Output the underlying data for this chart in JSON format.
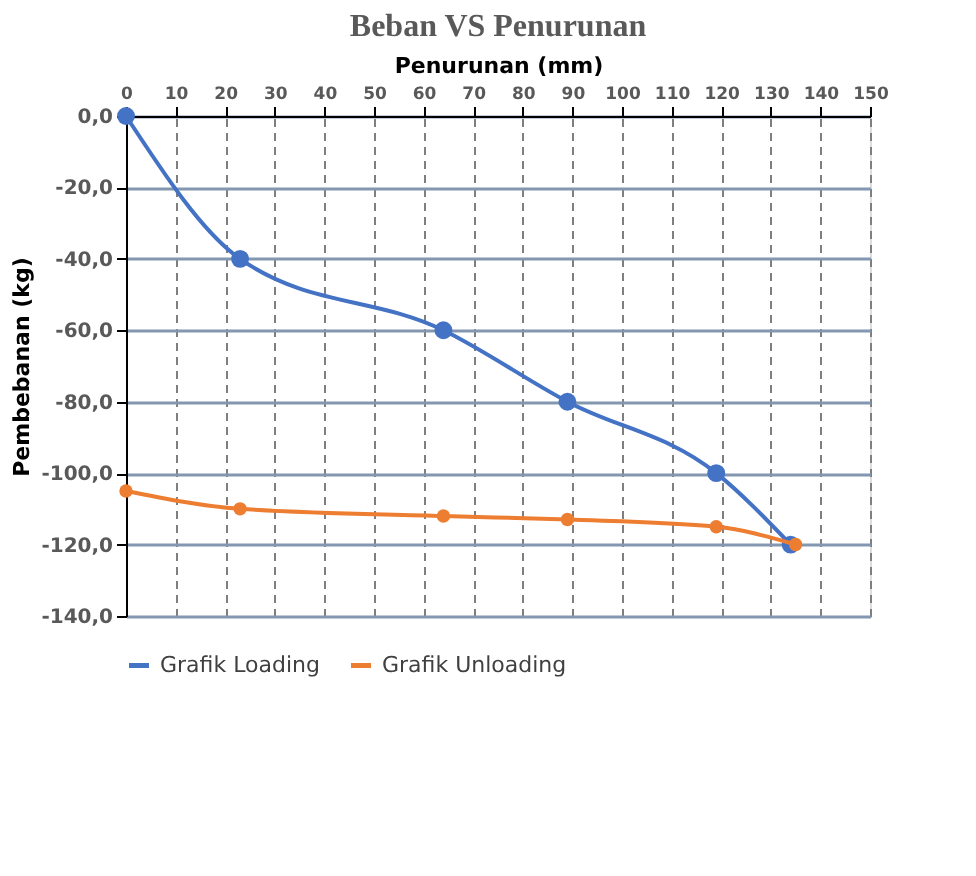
{
  "chart_data": {
    "type": "line",
    "title": "Beban VS Penurunan",
    "xlabel": "Penurunan (mm)",
    "ylabel": "Pembebanan (kg)",
    "series": [
      {
        "name": "Grafik Loading",
        "color": "#4472c4",
        "x": [
          0,
          23,
          64,
          89,
          119,
          134
        ],
        "values": [
          0,
          -40,
          -60,
          -80,
          -100,
          -120
        ]
      },
      {
        "name": "Grafik Unloading",
        "color": "#ed7d31",
        "x": [
          0,
          23,
          64,
          89,
          119,
          135
        ],
        "values": [
          -105,
          -110,
          -112,
          -113,
          -115,
          -120
        ]
      }
    ],
    "xlim": [
      0,
      150
    ],
    "xticks": [
      0,
      10,
      20,
      30,
      40,
      50,
      60,
      70,
      80,
      90,
      100,
      110,
      120,
      130,
      140,
      150
    ],
    "ylim": [
      -140,
      0
    ],
    "yticks": [
      {
        "value": 0,
        "label": "0,0"
      },
      {
        "value": -20,
        "label": "-20,0"
      },
      {
        "value": -40,
        "label": "-40,0"
      },
      {
        "value": -60,
        "label": "-60,0"
      },
      {
        "value": -80,
        "label": "-80,0"
      },
      {
        "value": -100,
        "label": "-100,0"
      },
      {
        "value": -120,
        "label": "-120,0"
      },
      {
        "value": -140,
        "label": "-140,0"
      }
    ],
    "grid": true,
    "legend": "bottom",
    "marker": "circle",
    "line_style": "solid"
  }
}
